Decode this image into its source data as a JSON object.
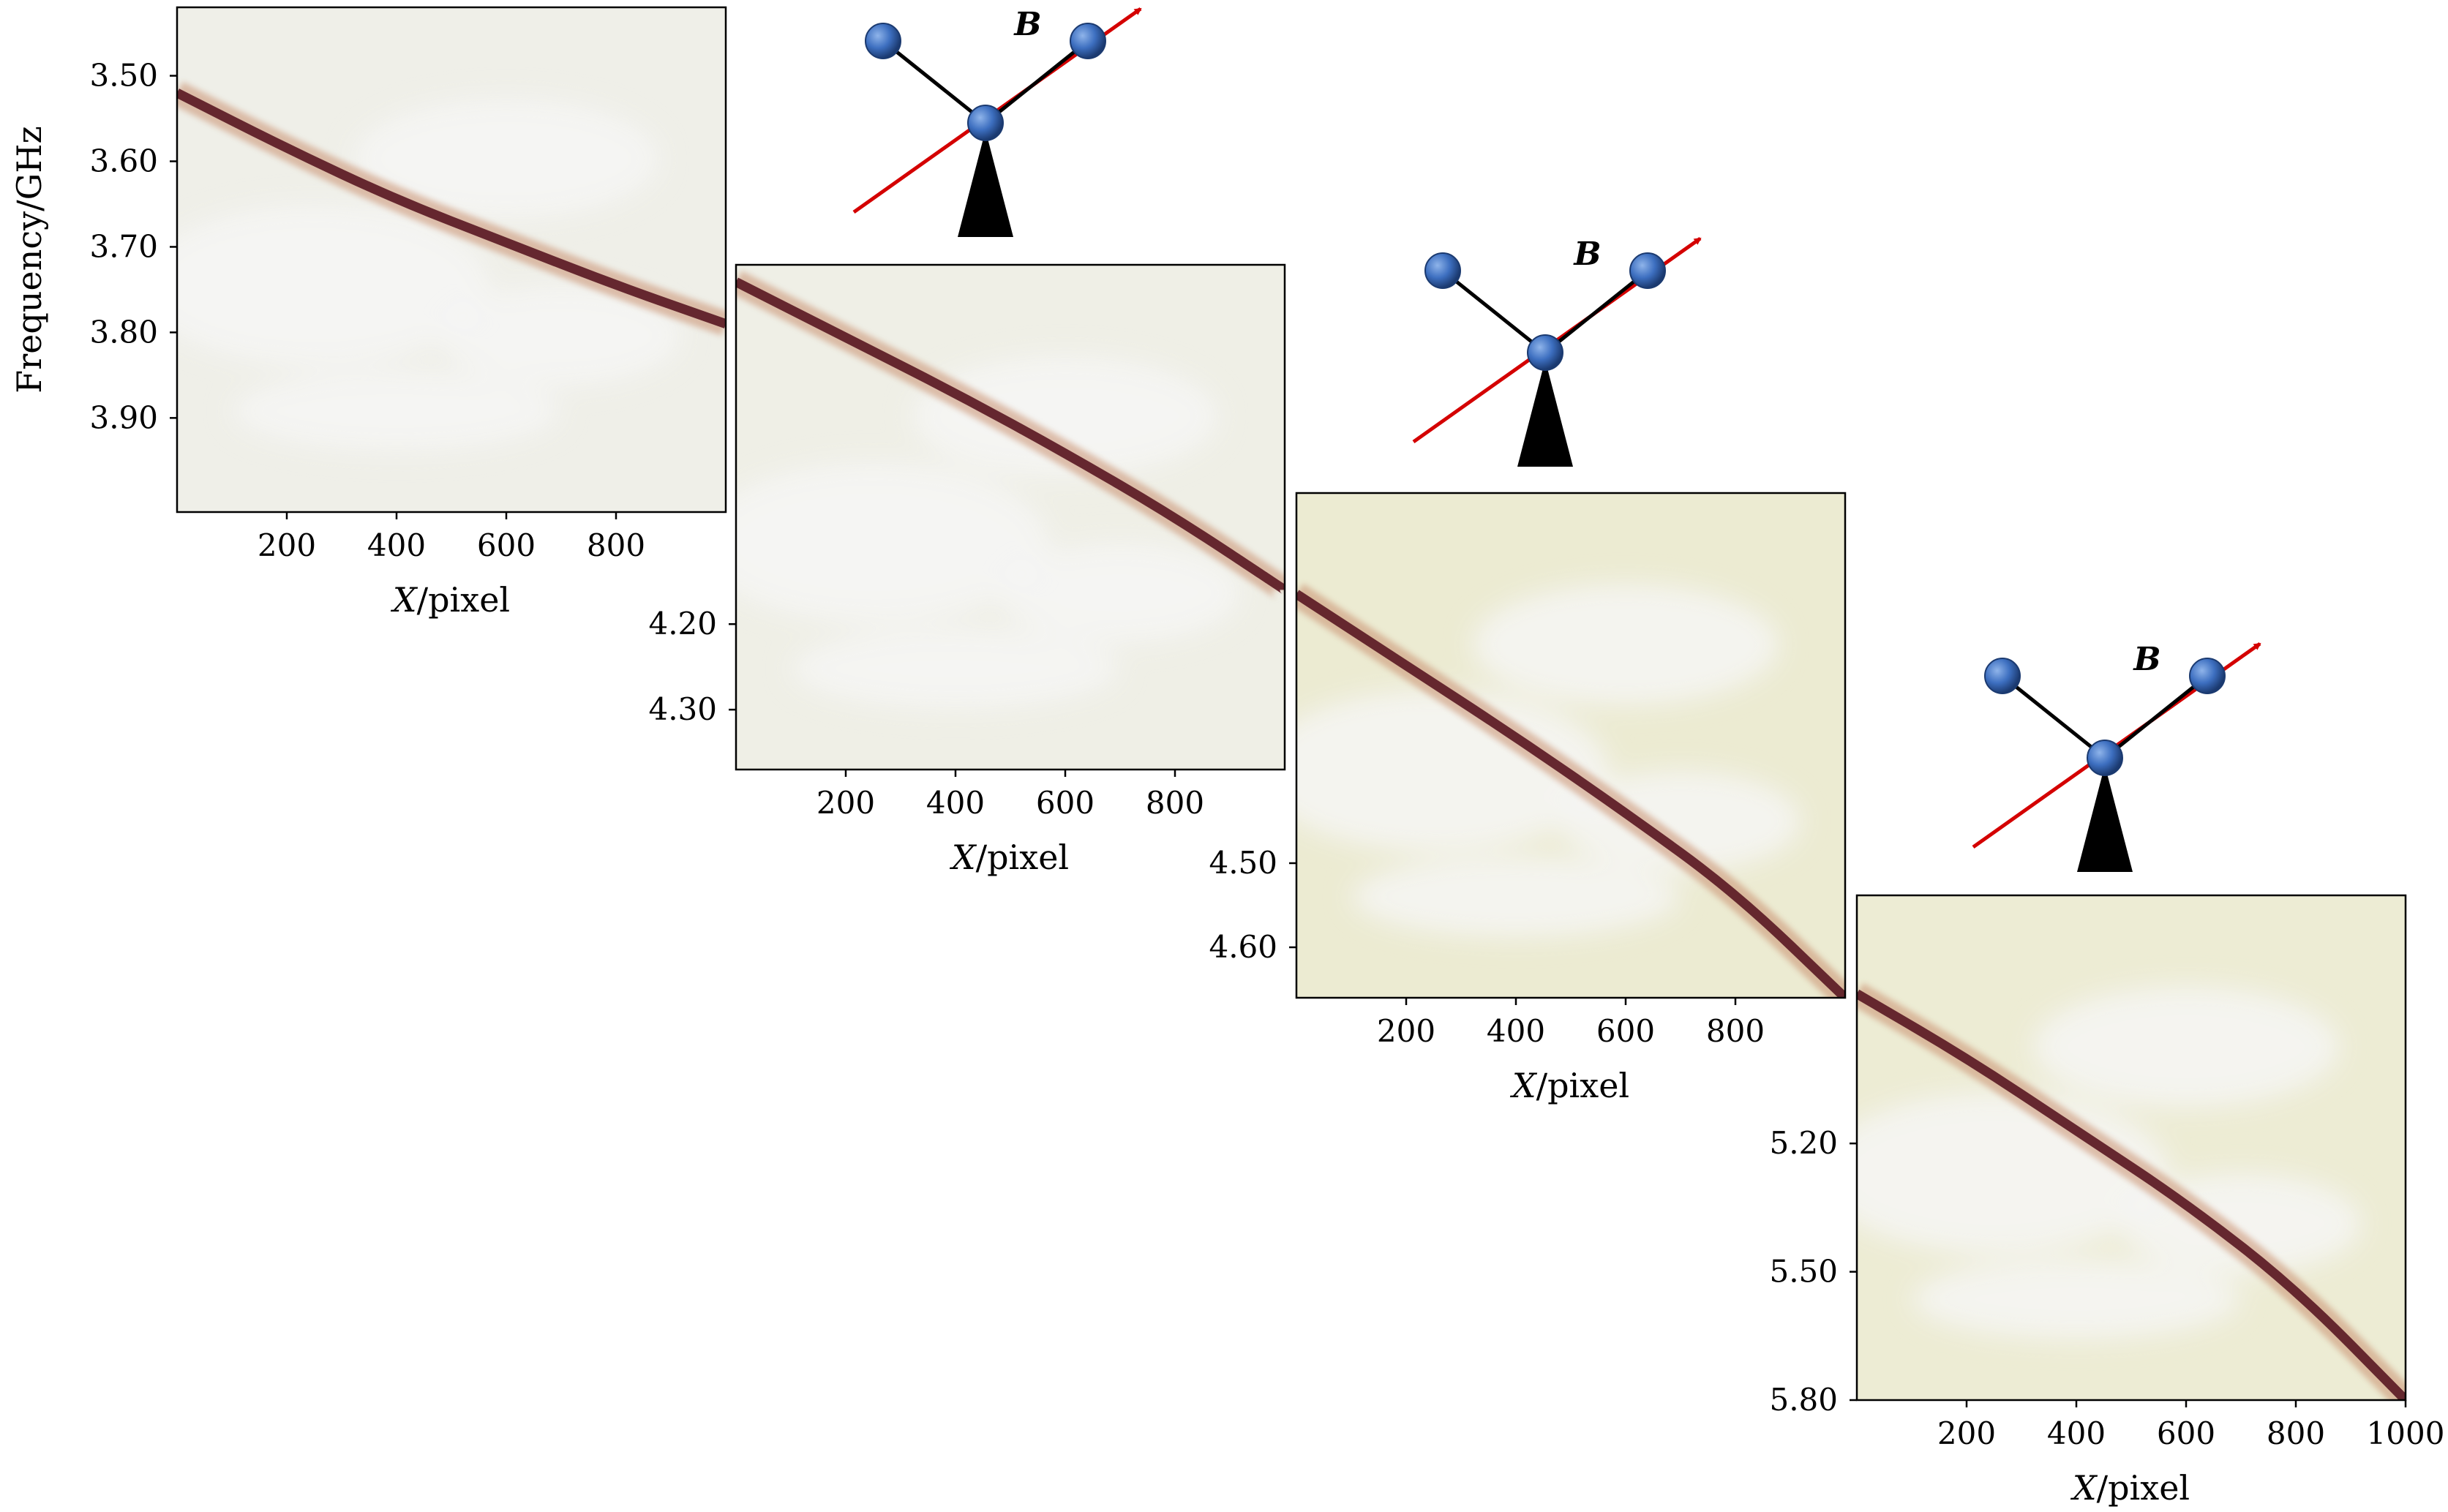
{
  "chart_data": [
    {
      "type": "heatmap",
      "xlabel_italic": "X",
      "xlabel_rest": "/pixel",
      "ylabel": "Frequency/GHz",
      "xlim": [
        0,
        1000
      ],
      "ylim": [
        3.42,
        4.01
      ],
      "x_ticks": [
        200,
        400,
        600,
        800
      ],
      "y_ticks": [
        "3.50",
        "3.60",
        "3.70",
        "3.80",
        "3.90"
      ],
      "y_tick_values": [
        3.5,
        3.6,
        3.7,
        3.8,
        3.9
      ],
      "trace": {
        "x": [
          0,
          200,
          400,
          600,
          800,
          1000
        ],
        "y": [
          3.52,
          3.585,
          3.645,
          3.695,
          3.745,
          3.79
        ]
      },
      "background_color": "#efefe8",
      "inset_label": "B"
    },
    {
      "type": "heatmap",
      "xlabel_italic": "X",
      "xlabel_rest": "/pixel",
      "ylabel": "",
      "xlim": [
        0,
        1000
      ],
      "ylim": [
        3.78,
        4.37
      ],
      "x_ticks": [
        200,
        400,
        600,
        800
      ],
      "y_ticks": [
        "4.20",
        "4.30"
      ],
      "y_tick_values": [
        4.2,
        4.3
      ],
      "trace": {
        "x": [
          0,
          200,
          400,
          600,
          800,
          1000
        ],
        "y": [
          3.8,
          3.865,
          3.93,
          4.0,
          4.075,
          4.16
        ]
      },
      "background_color": "#efefe6",
      "inset_label": "B"
    },
    {
      "type": "heatmap",
      "xlabel_italic": "X",
      "xlabel_rest": "/pixel",
      "ylabel": "",
      "xlim": [
        0,
        1000
      ],
      "ylim": [
        4.06,
        4.66
      ],
      "x_ticks": [
        200,
        400,
        600,
        800
      ],
      "y_ticks": [
        "4.50",
        "4.60"
      ],
      "y_tick_values": [
        4.5,
        4.6
      ],
      "trace": {
        "x": [
          0,
          200,
          400,
          600,
          800,
          1000
        ],
        "y": [
          4.18,
          4.265,
          4.35,
          4.44,
          4.535,
          4.66
        ]
      },
      "background_color": "#ecebd2",
      "inset_label": "B"
    },
    {
      "type": "heatmap",
      "xlabel_italic": "X",
      "xlabel_rest": "/pixel",
      "ylabel": "",
      "xlim": [
        0,
        1000
      ],
      "ylim": [
        4.62,
        5.8
      ],
      "x_ticks": [
        200,
        400,
        600,
        800,
        1000
      ],
      "y_ticks": [
        "5.20",
        "5.50",
        "5.80"
      ],
      "y_tick_values": [
        5.2,
        5.5,
        5.8
      ],
      "trace": {
        "x": [
          0,
          200,
          400,
          600,
          800,
          1000
        ],
        "y": [
          4.85,
          5.0,
          5.17,
          5.34,
          5.54,
          5.8
        ]
      },
      "background_color": "#edecd4",
      "inset_label": "B"
    }
  ],
  "colors": {
    "trace": "#5a1a24",
    "trace_glow": "#c99070",
    "arrow": "#d40000",
    "atom": "#3d6fc0",
    "atom_edge": "#1b3a70",
    "frame": "#000000"
  }
}
